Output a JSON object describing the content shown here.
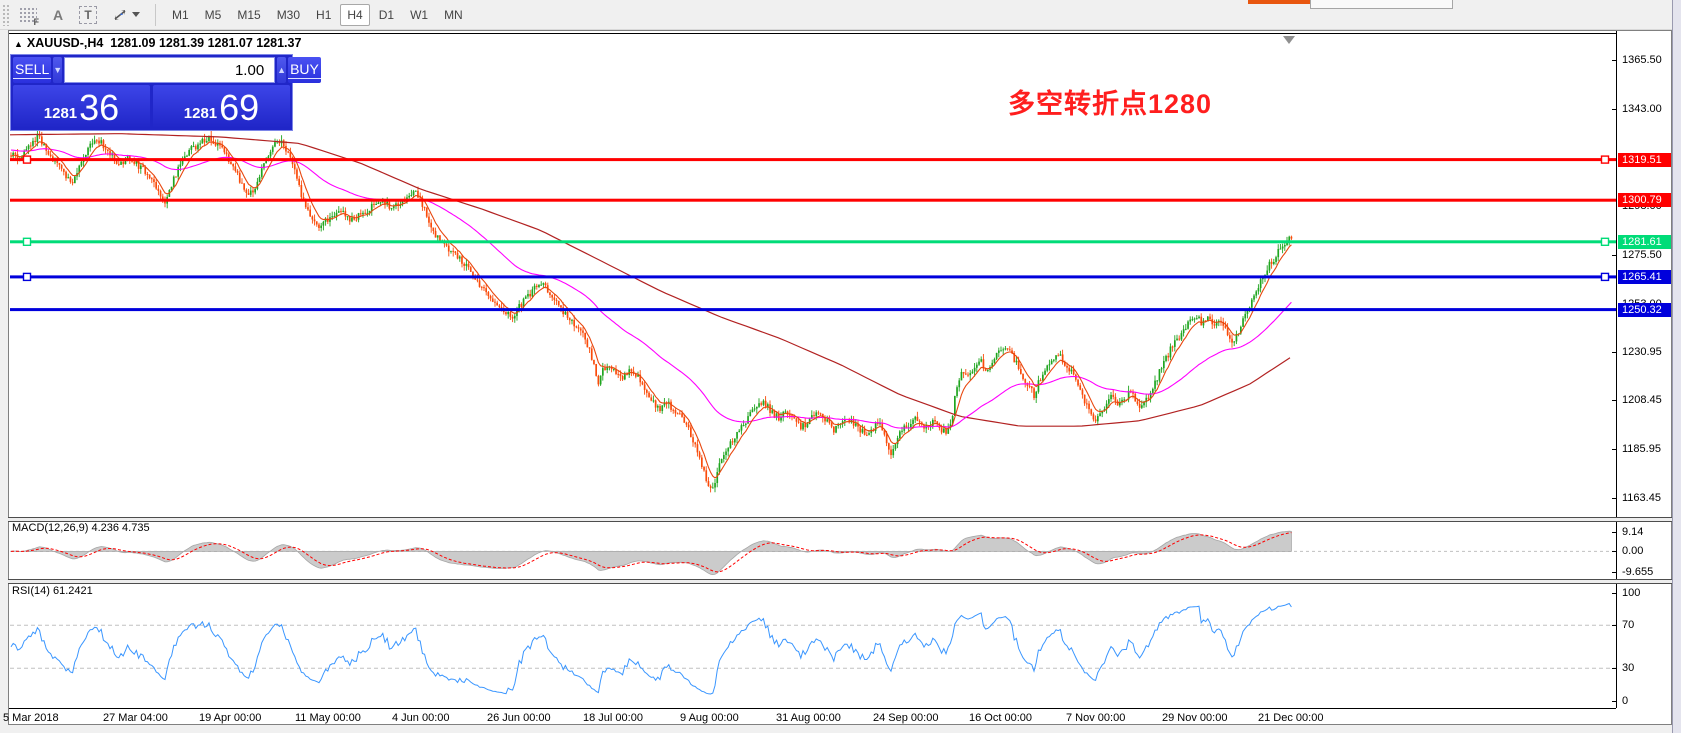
{
  "toolbar": {
    "icons": [
      {
        "name": "tile-windows-f-icon",
        "glyph": "F"
      },
      {
        "name": "cursor-a-icon",
        "glyph": "A"
      },
      {
        "name": "text-label-icon",
        "glyph": "T"
      },
      {
        "name": "crosshair-move-icon",
        "glyph": ""
      }
    ],
    "timeframes": [
      "M1",
      "M5",
      "M15",
      "M30",
      "H1",
      "H4",
      "D1",
      "W1",
      "MN"
    ],
    "active_timeframe": "H4"
  },
  "chart": {
    "header": {
      "marker_glyph": "▲",
      "symbol": "XAUUSD-,H4",
      "ohlc_text": "1281.09 1281.39 1281.07 1281.37"
    },
    "trade_panel": {
      "sell_label": "SELL",
      "buy_label": "BUY",
      "volume_value": "1.00",
      "spin_down_glyph": "▼",
      "spin_up_glyph": "▲",
      "sell_price_main": "1281",
      "sell_price_big": "36",
      "buy_price_main": "1281",
      "buy_price_big": "69"
    },
    "annotation": {
      "text": "多空转折点1280",
      "color": "#ff1e1e"
    }
  },
  "price_axis": {
    "ticks": [
      {
        "label": "1365.50",
        "price": 1365.5
      },
      {
        "label": "1343.00",
        "price": 1343.0
      },
      {
        "label": "1275.50",
        "price": 1275.5
      },
      {
        "label": "1230.95",
        "price": 1230.95
      },
      {
        "label": "1208.45",
        "price": 1208.45
      },
      {
        "label": "1185.95",
        "price": 1185.95
      },
      {
        "label": "1163.45",
        "price": 1163.45
      }
    ],
    "hidden_ticks": [
      {
        "label": "1298.00",
        "price": 1298.0
      },
      {
        "label": "1253.00",
        "price": 1253.0
      }
    ]
  },
  "hlines": [
    {
      "label": "1319.51",
      "price": 1319.51,
      "color": "#ff0000",
      "handles": true
    },
    {
      "label": "1300.79",
      "price": 1300.79,
      "color": "#ff0000",
      "handles": false
    },
    {
      "label": "1281.61",
      "price": 1281.61,
      "color": "#00dc78",
      "handles": true
    },
    {
      "label": "1265.41",
      "price": 1265.41,
      "color": "#0000dc",
      "handles": true
    },
    {
      "label": "1250.32",
      "price": 1250.32,
      "color": "#0000dc",
      "handles": false
    }
  ],
  "time_axis": {
    "labels": [
      "5 Mar 2018",
      "27 Mar 04:00",
      "19 Apr 00:00",
      "11 May 00:00",
      "4 Jun 00:00",
      "26 Jun 00:00",
      "18 Jul 00:00",
      "9 Aug 00:00",
      "31 Aug 00:00",
      "24 Sep 00:00",
      "16 Oct 00:00",
      "7 Nov 00:00",
      "29 Nov 00:00",
      "21 Dec 00:00"
    ]
  },
  "indicators": {
    "macd": {
      "label": "MACD(12,26,9) 4.236 4.735",
      "values": {
        "macd": 4.236,
        "signal": 4.735
      },
      "ticks": [
        {
          "label": "9.14",
          "value": 9.14
        },
        {
          "label": "0.00",
          "value": 0
        },
        {
          "label": "-9.655",
          "value": -9.655
        }
      ]
    },
    "rsi": {
      "label": "RSI(14) 61.2421",
      "value": 61.2421,
      "ticks": [
        {
          "label": "100",
          "value": 100
        },
        {
          "label": "70",
          "value": 70
        },
        {
          "label": "30",
          "value": 30
        },
        {
          "label": "0",
          "value": 0
        }
      ],
      "levels": [
        70,
        30
      ]
    }
  },
  "chart_data": {
    "type": "candlestick",
    "symbol": "XAUUSD-",
    "timeframe": "H4",
    "current_ohlc": {
      "open": 1281.09,
      "high": 1281.39,
      "low": 1281.07,
      "close": 1281.37
    },
    "bid": 1281.36,
    "ask": 1281.69,
    "y_axis_visible_range": [
      1163.45,
      1365.5
    ],
    "horizontal_levels": [
      1319.51,
      1300.79,
      1281.61,
      1265.41,
      1250.32
    ],
    "annotation_level": 1280,
    "price_path": [
      [
        10,
        1322
      ],
      [
        18,
        1320
      ],
      [
        28,
        1326
      ],
      [
        38,
        1330
      ],
      [
        48,
        1322
      ],
      [
        58,
        1318
      ],
      [
        66,
        1312
      ],
      [
        72,
        1308
      ],
      [
        80,
        1318
      ],
      [
        90,
        1326
      ],
      [
        100,
        1328
      ],
      [
        110,
        1322
      ],
      [
        120,
        1317
      ],
      [
        130,
        1321
      ],
      [
        140,
        1316
      ],
      [
        150,
        1312
      ],
      [
        158,
        1305
      ],
      [
        165,
        1300
      ],
      [
        172,
        1308
      ],
      [
        180,
        1318
      ],
      [
        190,
        1324
      ],
      [
        200,
        1327
      ],
      [
        210,
        1330
      ],
      [
        218,
        1326
      ],
      [
        226,
        1322
      ],
      [
        234,
        1315
      ],
      [
        242,
        1308
      ],
      [
        250,
        1303
      ],
      [
        258,
        1310
      ],
      [
        266,
        1320
      ],
      [
        274,
        1326
      ],
      [
        282,
        1328
      ],
      [
        288,
        1322
      ],
      [
        294,
        1315
      ],
      [
        300,
        1305
      ],
      [
        306,
        1297
      ],
      [
        312,
        1292
      ],
      [
        320,
        1289
      ],
      [
        330,
        1293
      ],
      [
        340,
        1296
      ],
      [
        350,
        1292
      ],
      [
        360,
        1294
      ],
      [
        370,
        1297
      ],
      [
        380,
        1300
      ],
      [
        390,
        1298
      ],
      [
        400,
        1300
      ],
      [
        408,
        1302
      ],
      [
        415,
        1305
      ],
      [
        422,
        1299
      ],
      [
        430,
        1290
      ],
      [
        438,
        1283
      ],
      [
        445,
        1279
      ],
      [
        452,
        1276
      ],
      [
        460,
        1274
      ],
      [
        468,
        1270
      ],
      [
        475,
        1265
      ],
      [
        482,
        1261
      ],
      [
        490,
        1257
      ],
      [
        498,
        1252
      ],
      [
        505,
        1249
      ],
      [
        512,
        1246
      ],
      [
        520,
        1252
      ],
      [
        528,
        1256
      ],
      [
        535,
        1260
      ],
      [
        542,
        1263
      ],
      [
        548,
        1259
      ],
      [
        555,
        1254
      ],
      [
        562,
        1250
      ],
      [
        570,
        1246
      ],
      [
        578,
        1241
      ],
      [
        585,
        1237
      ],
      [
        592,
        1228
      ],
      [
        598,
        1215
      ],
      [
        603,
        1222
      ],
      [
        608,
        1225
      ],
      [
        615,
        1222
      ],
      [
        622,
        1218
      ],
      [
        630,
        1223
      ],
      [
        638,
        1219
      ],
      [
        645,
        1213
      ],
      [
        652,
        1208
      ],
      [
        660,
        1204
      ],
      [
        668,
        1207
      ],
      [
        676,
        1203
      ],
      [
        684,
        1199
      ],
      [
        690,
        1193
      ],
      [
        697,
        1186
      ],
      [
        703,
        1177
      ],
      [
        708,
        1170
      ],
      [
        712,
        1166
      ],
      [
        716,
        1172
      ],
      [
        720,
        1180
      ],
      [
        726,
        1186
      ],
      [
        733,
        1190
      ],
      [
        740,
        1196
      ],
      [
        748,
        1200
      ],
      [
        755,
        1205
      ],
      [
        762,
        1208
      ],
      [
        770,
        1204
      ],
      [
        778,
        1200
      ],
      [
        786,
        1203
      ],
      [
        794,
        1199
      ],
      [
        802,
        1196
      ],
      [
        810,
        1200
      ],
      [
        818,
        1203
      ],
      [
        826,
        1199
      ],
      [
        834,
        1195
      ],
      [
        842,
        1198
      ],
      [
        850,
        1200
      ],
      [
        858,
        1196
      ],
      [
        866,
        1192
      ],
      [
        874,
        1196
      ],
      [
        880,
        1199
      ],
      [
        886,
        1190
      ],
      [
        891,
        1184
      ],
      [
        896,
        1190
      ],
      [
        902,
        1195
      ],
      [
        910,
        1198
      ],
      [
        918,
        1200
      ],
      [
        926,
        1196
      ],
      [
        934,
        1199
      ],
      [
        940,
        1195
      ],
      [
        946,
        1193
      ],
      [
        952,
        1197
      ],
      [
        955,
        1210
      ],
      [
        958,
        1218
      ],
      [
        962,
        1222
      ],
      [
        968,
        1219
      ],
      [
        974,
        1224
      ],
      [
        980,
        1227
      ],
      [
        986,
        1222
      ],
      [
        992,
        1226
      ],
      [
        998,
        1230
      ],
      [
        1004,
        1234
      ],
      [
        1010,
        1230
      ],
      [
        1016,
        1226
      ],
      [
        1022,
        1220
      ],
      [
        1028,
        1215
      ],
      [
        1034,
        1211
      ],
      [
        1040,
        1218
      ],
      [
        1046,
        1223
      ],
      [
        1052,
        1227
      ],
      [
        1058,
        1230
      ],
      [
        1064,
        1226
      ],
      [
        1070,
        1222
      ],
      [
        1076,
        1218
      ],
      [
        1082,
        1212
      ],
      [
        1088,
        1204
      ],
      [
        1094,
        1198
      ],
      [
        1100,
        1203
      ],
      [
        1106,
        1207
      ],
      [
        1112,
        1210
      ],
      [
        1118,
        1206
      ],
      [
        1124,
        1209
      ],
      [
        1130,
        1212
      ],
      [
        1136,
        1208
      ],
      [
        1142,
        1205
      ],
      [
        1148,
        1210
      ],
      [
        1154,
        1215
      ],
      [
        1160,
        1222
      ],
      [
        1166,
        1228
      ],
      [
        1172,
        1233
      ],
      [
        1178,
        1237
      ],
      [
        1184,
        1241
      ],
      [
        1190,
        1245
      ],
      [
        1196,
        1248
      ],
      [
        1202,
        1244
      ],
      [
        1208,
        1247
      ],
      [
        1214,
        1243
      ],
      [
        1220,
        1246
      ],
      [
        1226,
        1240
      ],
      [
        1232,
        1235
      ],
      [
        1238,
        1240
      ],
      [
        1244,
        1247
      ],
      [
        1250,
        1252
      ],
      [
        1256,
        1258
      ],
      [
        1262,
        1265
      ],
      [
        1268,
        1270
      ],
      [
        1274,
        1274
      ],
      [
        1280,
        1278
      ],
      [
        1285,
        1281
      ],
      [
        1289,
        1283
      ],
      [
        1293,
        1281.4
      ]
    ],
    "ma_slow_path": [
      [
        10,
        1331
      ],
      [
        120,
        1331.5
      ],
      [
        220,
        1330
      ],
      [
        300,
        1327
      ],
      [
        360,
        1318
      ],
      [
        420,
        1306
      ],
      [
        480,
        1297
      ],
      [
        540,
        1287
      ],
      [
        600,
        1273
      ],
      [
        660,
        1259
      ],
      [
        720,
        1247
      ],
      [
        780,
        1237
      ],
      [
        840,
        1225
      ],
      [
        900,
        1211
      ],
      [
        960,
        1201
      ],
      [
        1020,
        1196.5
      ],
      [
        1080,
        1196.5
      ],
      [
        1140,
        1199
      ],
      [
        1200,
        1206
      ],
      [
        1250,
        1216
      ],
      [
        1293,
        1229
      ]
    ],
    "colors": {
      "candle_up": "#1fa51f",
      "candle_down": "#fa4b0a",
      "ma_fast": "#e8470e",
      "ma_mid": "#ff00ff",
      "ma_slow": "#b22222",
      "macd_hist_fill": "#cbcbcb",
      "macd_hist_edge": "#a6a6a6",
      "macd_signal": "#ff0000",
      "rsi_line": "#3a96ff",
      "level_dash": "#c0c0c0"
    }
  }
}
